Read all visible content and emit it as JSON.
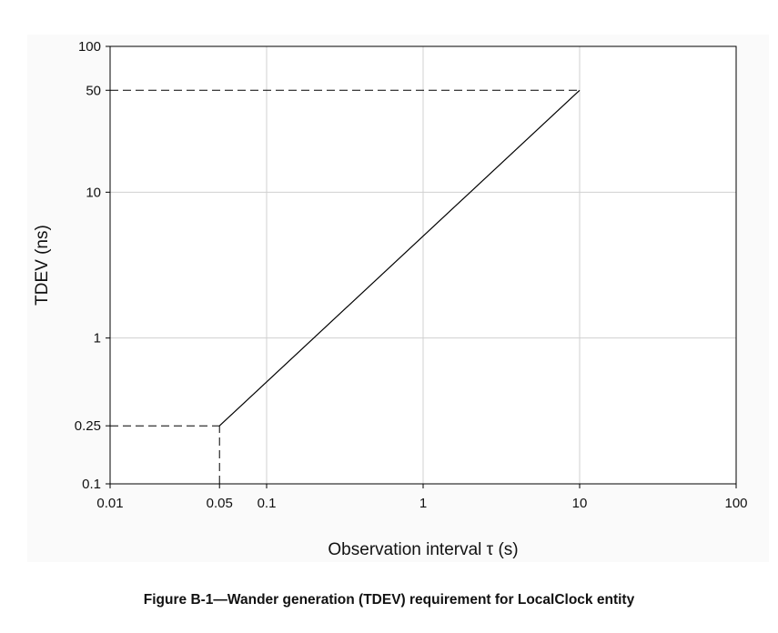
{
  "chart_data": {
    "type": "line",
    "xlabel": "Observation interval τ (s)",
    "ylabel": "TDEV (ns)",
    "xscale": "log",
    "yscale": "log",
    "xlim": [
      0.01,
      100
    ],
    "ylim": [
      0.1,
      100
    ],
    "x_ticks": [
      0.01,
      0.05,
      0.1,
      1,
      10,
      100
    ],
    "x_tick_labels": [
      "0.01",
      "0.05",
      "0.1",
      "1",
      "10",
      "100"
    ],
    "y_ticks": [
      0.1,
      0.25,
      1,
      10,
      50,
      100
    ],
    "y_tick_labels": [
      "0.1",
      "0.25",
      "1",
      "10",
      "50",
      "100"
    ],
    "x_gridlines": [
      0.1,
      1,
      10
    ],
    "y_gridlines": [
      1,
      10
    ],
    "grid": true,
    "legend": "none",
    "series": [
      {
        "style": "solid",
        "color": "#000000",
        "x": [
          0.05,
          10
        ],
        "y": [
          0.25,
          50
        ]
      }
    ],
    "reference_lines": [
      {
        "style": "dashed",
        "color": "#000000",
        "x": [
          0.01,
          10
        ],
        "y": [
          50,
          50
        ]
      },
      {
        "style": "dashed",
        "color": "#000000",
        "x": [
          0.01,
          0.05
        ],
        "y": [
          0.25,
          0.25
        ]
      },
      {
        "style": "dashed",
        "color": "#000000",
        "x": [
          0.05,
          0.05
        ],
        "y": [
          0.1,
          0.25
        ]
      }
    ],
    "colors": {
      "grid": "#d0d0d0",
      "frame": "#000000",
      "panel": "#fafafa"
    }
  },
  "caption": "Figure B-1—Wander generation (TDEV) requirement for LocalClock entity"
}
